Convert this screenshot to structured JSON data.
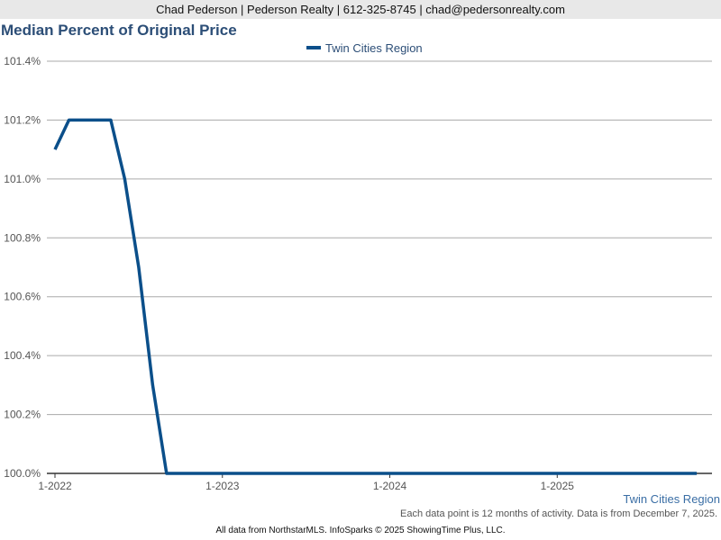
{
  "header": {
    "contact_line": "Chad Pederson | Pederson Realty | 612-325-8745 | chad@pedersonrealty.com"
  },
  "chart_data": {
    "type": "line",
    "title": "Median Percent of Original Price",
    "xlabel": "",
    "ylabel": "",
    "x_tick_labels": [
      "1-2022",
      "1-2023",
      "1-2024",
      "1-2025"
    ],
    "y_tick_labels": [
      "100.0%",
      "100.2%",
      "100.4%",
      "100.6%",
      "100.8%",
      "101.0%",
      "101.2%",
      "101.4%"
    ],
    "y_ticks": [
      100.0,
      100.2,
      100.4,
      100.6,
      100.8,
      101.0,
      101.2,
      101.4
    ],
    "ylim": [
      100.0,
      101.4
    ],
    "x_months": [
      "2022-01",
      "2022-02",
      "2022-03",
      "2022-04",
      "2022-05",
      "2022-06",
      "2022-07",
      "2022-08",
      "2022-09",
      "2022-10",
      "2022-11",
      "2022-12",
      "2023-01",
      "2023-02",
      "2023-03",
      "2023-04",
      "2023-05",
      "2023-06",
      "2023-07",
      "2023-08",
      "2023-09",
      "2023-10",
      "2023-11",
      "2023-12",
      "2024-01",
      "2024-02",
      "2024-03",
      "2024-04",
      "2024-05",
      "2024-06",
      "2024-07",
      "2024-08",
      "2024-09",
      "2024-10",
      "2024-11",
      "2024-12",
      "2025-01",
      "2025-02",
      "2025-03",
      "2025-04",
      "2025-05",
      "2025-06",
      "2025-07",
      "2025-08",
      "2025-09",
      "2025-10",
      "2025-11"
    ],
    "grid": true,
    "legend_position": "top-center",
    "series": [
      {
        "name": "Twin Cities Region",
        "color": "#0b4f8a",
        "values": [
          101.1,
          101.2,
          101.2,
          101.2,
          101.2,
          101.0,
          100.7,
          100.3,
          100.0,
          100.0,
          100.0,
          100.0,
          100.0,
          100.0,
          100.0,
          100.0,
          100.0,
          100.0,
          100.0,
          100.0,
          100.0,
          100.0,
          100.0,
          100.0,
          100.0,
          100.0,
          100.0,
          100.0,
          100.0,
          100.0,
          100.0,
          100.0,
          100.0,
          100.0,
          100.0,
          100.0,
          100.0,
          100.0,
          100.0,
          100.0,
          100.0,
          100.0,
          100.0,
          100.0,
          100.0,
          100.0,
          100.0
        ]
      }
    ]
  },
  "region_label": "Twin Cities Region",
  "note": "Each data point is 12 months of activity. Data is from December 7, 2025.",
  "footer": "All data from NorthstarMLS. InfoSparks © 2025 ShowingTime Plus, LLC.",
  "colors": {
    "title": "#2c4e77",
    "grid": "#aaaaaa",
    "axis": "#333333",
    "header_bg": "#e8e8e8"
  }
}
